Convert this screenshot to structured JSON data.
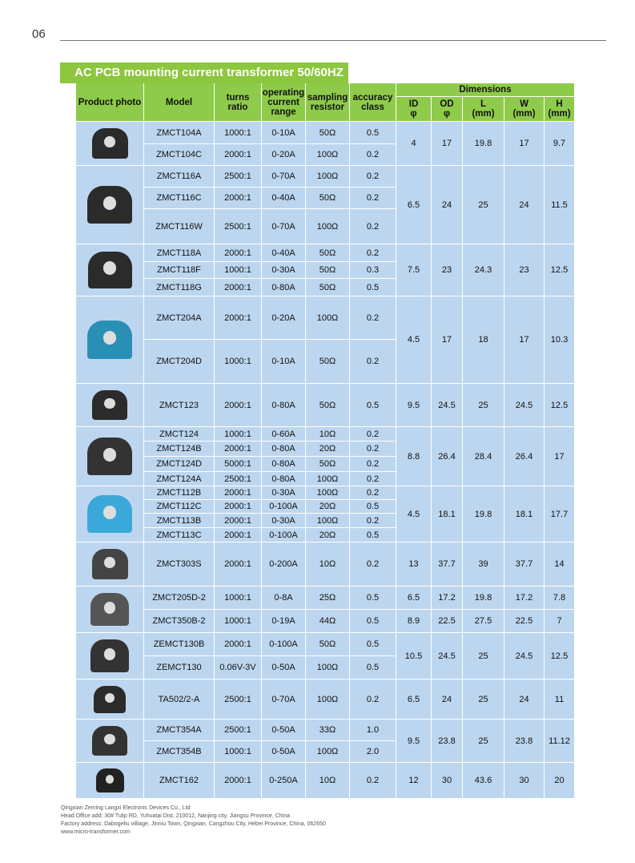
{
  "page_number": "06",
  "title": "AC  PCB mounting current transformer 50/60HZ",
  "header": {
    "columns": [
      "Product photo",
      "Model",
      "turns\nratio",
      "operating\ncurrent\nrange",
      "sampling\nresistor",
      "accuracy\nclass"
    ],
    "dimensions_title": "Dimensions",
    "dim_columns": [
      "ID\nφ",
      "OD\nφ",
      "L\n(mm)",
      "W\n(mm)",
      "H\n(mm)"
    ]
  },
  "groups": [
    {
      "rows": [
        [
          "ZMCT104A",
          "1000:1",
          "0-10A",
          "50Ω",
          "0.5"
        ],
        [
          "ZMCT104C",
          "2000:1",
          "0-20A",
          "100Ω",
          "0.2"
        ]
      ],
      "dimensions": [
        [
          "4",
          "17",
          "19.8",
          "17",
          "9.7"
        ]
      ]
    },
    {
      "rows": [
        [
          "ZMCT116A",
          "2500:1",
          "0-70A",
          "100Ω",
          "0.2"
        ],
        [
          "ZMCT116C",
          "2000:1",
          "0-40A",
          "50Ω",
          "0.2"
        ],
        [
          "ZMCT116W",
          "2500:1",
          "0-70A",
          "100Ω",
          "0.2"
        ]
      ],
      "dimensions": [
        [
          "6.5",
          "24",
          "25",
          "24",
          "11.5"
        ]
      ]
    },
    {
      "rows": [
        [
          "ZMCT118A",
          "2000:1",
          "0-40A",
          "50Ω",
          "0.2"
        ],
        [
          "ZMCT118F",
          "1000:1",
          "0-30A",
          "50Ω",
          "0.3"
        ],
        [
          "ZMCT118G",
          "2000:1",
          "0-80A",
          "50Ω",
          "0.5"
        ]
      ],
      "dimensions": [
        [
          "7.5",
          "23",
          "24.3",
          "23",
          "12.5"
        ]
      ]
    },
    {
      "rows": [
        [
          "ZMCT204A",
          "2000:1",
          "0-20A",
          "100Ω",
          "0.2"
        ],
        [
          "ZMCT204D",
          "1000:1",
          "0-10A",
          "50Ω",
          "0.2"
        ]
      ],
      "dimensions": [
        [
          "4.5",
          "17",
          "18",
          "17",
          "10.3"
        ]
      ]
    },
    {
      "rows": [
        [
          "ZMCT123",
          "2000:1",
          "0-80A",
          "50Ω",
          "0.5"
        ]
      ],
      "dimensions": [
        [
          "9.5",
          "24.5",
          "25",
          "24.5",
          "12.5"
        ]
      ]
    },
    {
      "rows": [
        [
          "ZMCT124",
          "1000:1",
          "0-60A",
          "10Ω",
          "0.2"
        ],
        [
          "ZMCT124B",
          "2000:1",
          "0-80A",
          "20Ω",
          "0.2"
        ],
        [
          "ZMCT124D",
          "5000:1",
          "0-80A",
          "50Ω",
          "0.2"
        ],
        [
          "ZMCT124A",
          "2500:1",
          "0-80A",
          "100Ω",
          "0.2"
        ]
      ],
      "dimensions": [
        [
          "8.8",
          "26.4",
          "28.4",
          "26.4",
          "17"
        ]
      ]
    },
    {
      "rows": [
        [
          "ZMCT112B",
          "2000:1",
          "0-30A",
          "100Ω",
          "0.2"
        ],
        [
          "ZMCT112C",
          "2000:1",
          "0-100A",
          "20Ω",
          "0.5"
        ],
        [
          "ZMCT113B",
          "2000:1",
          "0-30A",
          "100Ω",
          "0.2"
        ],
        [
          "ZMCT113C",
          "2000:1",
          "0-100A",
          "20Ω",
          "0.5"
        ]
      ],
      "dimensions": [
        [
          "4.5",
          "18.1",
          "19.8",
          "18.1",
          "17.7"
        ]
      ]
    },
    {
      "rows": [
        [
          "ZMCT303S",
          "2000:1",
          "0-200A",
          "10Ω",
          "0.2"
        ]
      ],
      "dimensions": [
        [
          "13",
          "37.7",
          "39",
          "37.7",
          "14"
        ]
      ]
    },
    {
      "rows": [
        [
          "ZMCT205D-2",
          "1000:1",
          "0-8A",
          "25Ω",
          "0.5"
        ],
        [
          "ZMCT350B-2",
          "1000:1",
          "0-19A",
          "44Ω",
          "0.5"
        ]
      ],
      "dimensions": [
        [
          "6.5",
          "17.2",
          "19.8",
          "17.2",
          "7.8"
        ],
        [
          "8.9",
          "22.5",
          "27.5",
          "22.5",
          "7"
        ]
      ]
    },
    {
      "rows": [
        [
          "ZEMCT130B",
          "2000:1",
          "0-100A",
          "50Ω",
          "0.5"
        ],
        [
          "ZEMCT130",
          "0.06V-3V",
          "0-50A",
          "100Ω",
          "0.5"
        ]
      ],
      "dimensions": [
        [
          "10.5",
          "24.5",
          "25",
          "24.5",
          "12.5"
        ]
      ]
    },
    {
      "rows": [
        [
          "TA502/2-A",
          "2500:1",
          "0-70A",
          "100Ω",
          "0.2"
        ]
      ],
      "dimensions": [
        [
          "6.5",
          "24",
          "25",
          "24",
          "11"
        ]
      ]
    },
    {
      "rows": [
        [
          "ZMCT354A",
          "2500:1",
          "0-50A",
          "33Ω",
          "1.0"
        ],
        [
          "ZMCT354B",
          "1000:1",
          "0-50A",
          "100Ω",
          "2.0"
        ]
      ],
      "dimensions": [
        [
          "9.5",
          "23.8",
          "25",
          "23.8",
          "11.12"
        ]
      ]
    },
    {
      "rows": [
        [
          "ZMCT162",
          "2000:1",
          "0-250A",
          "10Ω",
          "0.2"
        ]
      ],
      "dimensions": [
        [
          "12",
          "30",
          "43.6",
          "30",
          "20"
        ]
      ]
    }
  ],
  "footer": [
    "Qingxian Zeming Langxi Electronic Devices Co., Ltd",
    "Head Office add:  30# Tulip RD, Yuhuatai Dist, 210012, Nanjing city, Jiangsu Province, China",
    "Factory address: Dabogeliu villiage, Jinniu Town, Qingxian, Cangzhou City, Hebei Province, China, 062650",
    "www.micro-transformer.com"
  ]
}
